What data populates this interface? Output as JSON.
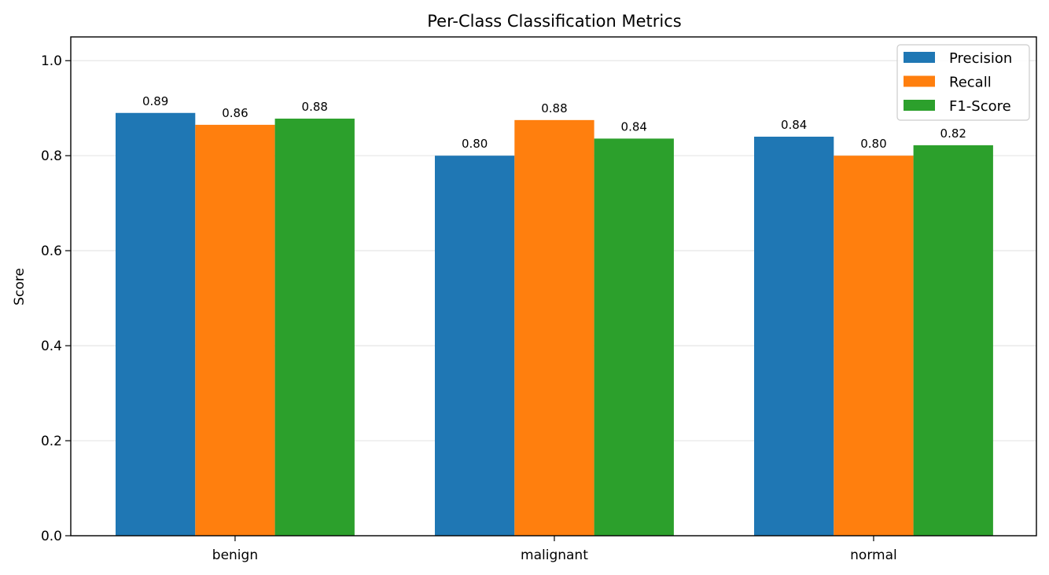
{
  "chart_data": {
    "type": "bar",
    "title": "Per-Class Classification Metrics",
    "xlabel": "",
    "ylabel": "Score",
    "categories": [
      "benign",
      "malignant",
      "normal"
    ],
    "series": [
      {
        "name": "Precision",
        "color": "#1f77b4",
        "values": [
          0.89,
          0.8,
          0.84
        ],
        "labels": [
          "0.89",
          "0.80",
          "0.84"
        ]
      },
      {
        "name": "Recall",
        "color": "#ff7f0e",
        "values": [
          0.865,
          0.875,
          0.8
        ],
        "labels": [
          "0.86",
          "0.88",
          "0.80"
        ]
      },
      {
        "name": "F1-Score",
        "color": "#2ca02c",
        "values": [
          0.878,
          0.836,
          0.822
        ],
        "labels": [
          "0.88",
          "0.84",
          "0.82"
        ]
      }
    ],
    "ylim": [
      0,
      1.05
    ],
    "yticks": [
      0.0,
      0.2,
      0.4,
      0.6,
      0.8,
      1.0
    ],
    "ytick_labels": [
      "0.0",
      "0.2",
      "0.4",
      "0.6",
      "0.8",
      "1.0"
    ],
    "grid": "y",
    "legend_position": "top-right"
  }
}
